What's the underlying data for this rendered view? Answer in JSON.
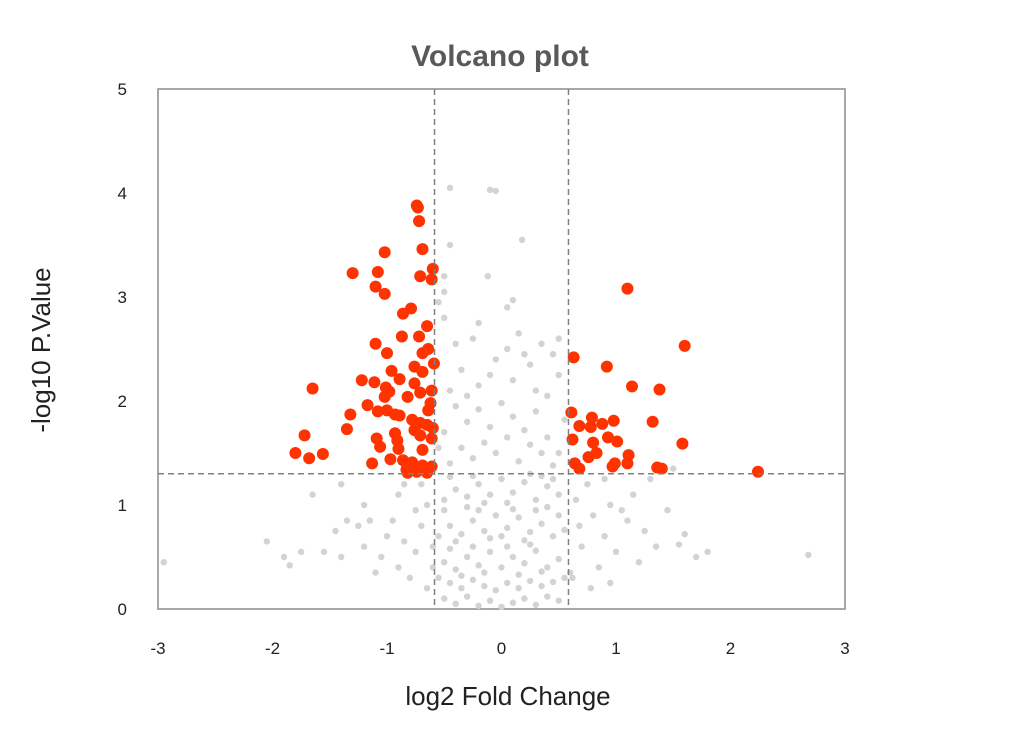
{
  "chart_data": {
    "type": "scatter",
    "title": "Volcano plot",
    "xlabel": "log2 Fold Change",
    "ylabel": "-log10 P.Value",
    "xlim": [
      -3,
      3
    ],
    "ylim": [
      0,
      5
    ],
    "x_ticks": [
      "-3",
      "-2",
      "-1",
      "0",
      "1",
      "2",
      "3"
    ],
    "y_ticks": [
      "0",
      "1",
      "2",
      "3",
      "4",
      "5"
    ],
    "grid": false,
    "thresholds": {
      "fold_change": [
        -0.585,
        0.585
      ],
      "neg_log10_p": 1.3
    },
    "colors": {
      "significant": "#FF3300",
      "not_significant": "#D3D3D3",
      "threshold_line": "#808080",
      "title": "#595959"
    },
    "series": [
      {
        "color": "#D3D3D3",
        "points": [
          [
            -0.5,
            0.1
          ],
          [
            -0.4,
            0.05
          ],
          [
            -0.3,
            0.12
          ],
          [
            -0.2,
            0.03
          ],
          [
            -0.1,
            0.08
          ],
          [
            0,
            0.02
          ],
          [
            0.1,
            0.06
          ],
          [
            0.2,
            0.1
          ],
          [
            0.3,
            0.04
          ],
          [
            0.4,
            0.12
          ],
          [
            0.5,
            0.08
          ],
          [
            -0.45,
            0.25
          ],
          [
            -0.35,
            0.2
          ],
          [
            -0.25,
            0.28
          ],
          [
            -0.15,
            0.22
          ],
          [
            -0.05,
            0.18
          ],
          [
            0.05,
            0.25
          ],
          [
            0.15,
            0.2
          ],
          [
            0.25,
            0.27
          ],
          [
            0.35,
            0.22
          ],
          [
            0.45,
            0.26
          ],
          [
            -0.55,
            0.3
          ],
          [
            0.55,
            0.3
          ],
          [
            -0.6,
            0.4
          ],
          [
            -0.5,
            0.45
          ],
          [
            -0.4,
            0.38
          ],
          [
            -0.3,
            0.5
          ],
          [
            -0.2,
            0.42
          ],
          [
            -0.1,
            0.55
          ],
          [
            0,
            0.4
          ],
          [
            0.1,
            0.5
          ],
          [
            0.2,
            0.44
          ],
          [
            0.3,
            0.56
          ],
          [
            0.4,
            0.4
          ],
          [
            0.5,
            0.48
          ],
          [
            0.6,
            0.35
          ],
          [
            -0.45,
            0.58
          ],
          [
            -0.15,
            0.35
          ],
          [
            0.15,
            0.33
          ],
          [
            0.35,
            0.36
          ],
          [
            -0.35,
            0.32
          ],
          [
            0.05,
            0.6
          ],
          [
            -0.25,
            0.6
          ],
          [
            0.25,
            0.62
          ],
          [
            -0.55,
            0.7
          ],
          [
            -0.45,
            0.8
          ],
          [
            -0.35,
            0.72
          ],
          [
            -0.25,
            0.85
          ],
          [
            -0.15,
            0.75
          ],
          [
            -0.05,
            0.9
          ],
          [
            0.05,
            0.78
          ],
          [
            0.15,
            0.88
          ],
          [
            0.25,
            0.74
          ],
          [
            0.35,
            0.82
          ],
          [
            0.45,
            0.7
          ],
          [
            0.55,
            0.76
          ],
          [
            -0.5,
            0.95
          ],
          [
            -0.3,
            0.98
          ],
          [
            -0.1,
            0.68
          ],
          [
            0.1,
            0.96
          ],
          [
            0.3,
            0.95
          ],
          [
            0.5,
            0.9
          ],
          [
            -0.2,
            0.95
          ],
          [
            0.2,
            0.66
          ],
          [
            0,
            0.7
          ],
          [
            -0.4,
            0.65
          ],
          [
            0.4,
            0.98
          ],
          [
            -0.5,
            1.05
          ],
          [
            -0.4,
            1.15
          ],
          [
            -0.3,
            1.08
          ],
          [
            -0.2,
            1.2
          ],
          [
            -0.1,
            1.1
          ],
          [
            0,
            1.25
          ],
          [
            0.1,
            1.12
          ],
          [
            0.2,
            1.22
          ],
          [
            0.3,
            1.05
          ],
          [
            0.4,
            1.18
          ],
          [
            0.5,
            1.1
          ],
          [
            -0.45,
            1.27
          ],
          [
            -0.25,
            1.28
          ],
          [
            0.05,
            1.02
          ],
          [
            0.25,
            1.3
          ],
          [
            0.45,
            1.25
          ],
          [
            -0.15,
            1.02
          ],
          [
            0.35,
            1.28
          ],
          [
            -0.45,
            1.4
          ],
          [
            -0.35,
            1.55
          ],
          [
            -0.25,
            1.45
          ],
          [
            -0.15,
            1.6
          ],
          [
            -0.05,
            1.5
          ],
          [
            0.05,
            1.65
          ],
          [
            0.15,
            1.42
          ],
          [
            0.25,
            1.58
          ],
          [
            0.35,
            1.5
          ],
          [
            0.45,
            1.38
          ],
          [
            -0.5,
            1.7
          ],
          [
            -0.3,
            1.8
          ],
          [
            -0.1,
            1.75
          ],
          [
            0.1,
            1.85
          ],
          [
            0.2,
            1.72
          ],
          [
            0.3,
            1.9
          ],
          [
            0.4,
            1.65
          ],
          [
            0.5,
            1.5
          ],
          [
            -0.4,
            1.95
          ],
          [
            -0.2,
            1.92
          ],
          [
            0,
            1.98
          ],
          [
            0.55,
            1.82
          ],
          [
            -0.55,
            1.55
          ],
          [
            -0.45,
            2.1
          ],
          [
            -0.35,
            2.3
          ],
          [
            -0.2,
            2.15
          ],
          [
            -0.05,
            2.4
          ],
          [
            0.1,
            2.2
          ],
          [
            0.25,
            2.35
          ],
          [
            0.4,
            2.05
          ],
          [
            -0.4,
            2.55
          ],
          [
            -0.25,
            2.6
          ],
          [
            -0.1,
            2.25
          ],
          [
            0.05,
            2.5
          ],
          [
            0.15,
            2.65
          ],
          [
            0.3,
            2.1
          ],
          [
            0.45,
            2.45
          ],
          [
            -0.5,
            2.8
          ],
          [
            -0.2,
            2.75
          ],
          [
            0.05,
            2.9
          ],
          [
            0.5,
            2.25
          ],
          [
            0.2,
            2.45
          ],
          [
            -0.3,
            2.05
          ],
          [
            0.35,
            2.55
          ],
          [
            0.5,
            2.6
          ],
          [
            -0.5,
            3.05
          ],
          [
            -0.5,
            3.2
          ],
          [
            -0.45,
            3.5
          ],
          [
            -0.12,
            3.2
          ],
          [
            0.1,
            2.97
          ],
          [
            0.18,
            3.55
          ],
          [
            -0.45,
            4.05
          ],
          [
            -0.1,
            4.03
          ],
          [
            -0.05,
            4.02
          ],
          [
            -0.55,
            2.95
          ],
          [
            -2.95,
            0.45
          ],
          [
            -2.05,
            0.65
          ],
          [
            -1.9,
            0.5
          ],
          [
            -1.85,
            0.42
          ],
          [
            -1.75,
            0.55
          ],
          [
            -1.55,
            0.55
          ],
          [
            -1.45,
            0.75
          ],
          [
            -1.4,
            0.5
          ],
          [
            -1.35,
            0.85
          ],
          [
            -1.25,
            0.8
          ],
          [
            -1.2,
            0.6
          ],
          [
            -1.15,
            0.85
          ],
          [
            -1.05,
            0.5
          ],
          [
            -1.0,
            0.7
          ],
          [
            -0.9,
            0.4
          ],
          [
            -0.85,
            0.65
          ],
          [
            -0.8,
            0.3
          ],
          [
            -0.75,
            0.55
          ],
          [
            -0.7,
            0.8
          ],
          [
            -0.65,
            0.2
          ],
          [
            -0.65,
            1.0
          ],
          [
            -0.7,
            1.2
          ],
          [
            -0.9,
            1.1
          ],
          [
            -1.4,
            1.2
          ],
          [
            -1.65,
            1.1
          ],
          [
            -1.2,
            1.0
          ],
          [
            -0.95,
            0.85
          ],
          [
            -1.1,
            0.35
          ],
          [
            -0.6,
            0.6
          ],
          [
            -0.75,
            0.95
          ],
          [
            -0.85,
            1.2
          ],
          [
            2.68,
            0.52
          ],
          [
            1.8,
            0.55
          ],
          [
            1.7,
            0.5
          ],
          [
            1.6,
            0.72
          ],
          [
            1.55,
            0.62
          ],
          [
            1.45,
            0.95
          ],
          [
            1.35,
            0.6
          ],
          [
            1.25,
            0.75
          ],
          [
            1.2,
            0.45
          ],
          [
            1.1,
            0.85
          ],
          [
            1.0,
            0.55
          ],
          [
            0.95,
            1.0
          ],
          [
            0.9,
            0.7
          ],
          [
            0.85,
            0.4
          ],
          [
            0.8,
            0.9
          ],
          [
            0.75,
            1.2
          ],
          [
            0.7,
            0.6
          ],
          [
            0.65,
            1.05
          ],
          [
            0.62,
            0.3
          ],
          [
            0.68,
            0.8
          ],
          [
            1.3,
            1.25
          ],
          [
            1.15,
            1.1
          ],
          [
            0.9,
            1.25
          ],
          [
            1.5,
            1.35
          ],
          [
            0.95,
            0.25
          ],
          [
            1.05,
            0.95
          ],
          [
            0.78,
            0.2
          ]
        ]
      },
      {
        "color": "#FF3300",
        "points": [
          [
            -0.74,
            3.88
          ],
          [
            -0.73,
            3.86
          ],
          [
            -0.72,
            3.73
          ],
          [
            -1.02,
            3.43
          ],
          [
            -0.69,
            3.46
          ],
          [
            -1.3,
            3.23
          ],
          [
            -1.08,
            3.24
          ],
          [
            -0.6,
            3.27
          ],
          [
            -0.71,
            3.2
          ],
          [
            -0.61,
            3.17
          ],
          [
            -1.1,
            3.1
          ],
          [
            -1.02,
            3.03
          ],
          [
            -0.79,
            2.89
          ],
          [
            -0.86,
            2.84
          ],
          [
            -0.65,
            2.72
          ],
          [
            -0.87,
            2.62
          ],
          [
            -0.72,
            2.62
          ],
          [
            -1.1,
            2.55
          ],
          [
            -0.64,
            2.5
          ],
          [
            -0.69,
            2.46
          ],
          [
            -1.0,
            2.46
          ],
          [
            -0.59,
            2.36
          ],
          [
            -0.76,
            2.33
          ],
          [
            -0.96,
            2.29
          ],
          [
            -0.69,
            2.28
          ],
          [
            -0.89,
            2.21
          ],
          [
            -1.22,
            2.2
          ],
          [
            -1.11,
            2.18
          ],
          [
            -0.76,
            2.17
          ],
          [
            -1.65,
            2.12
          ],
          [
            -1.01,
            2.13
          ],
          [
            -0.98,
            2.09
          ],
          [
            -0.61,
            2.1
          ],
          [
            -0.71,
            2.08
          ],
          [
            -0.82,
            2.04
          ],
          [
            -1.02,
            2.04
          ],
          [
            -0.62,
            1.98
          ],
          [
            -0.64,
            1.91
          ],
          [
            -1.17,
            1.96
          ],
          [
            -1.08,
            1.9
          ],
          [
            -1.0,
            1.91
          ],
          [
            -1.32,
            1.87
          ],
          [
            -0.93,
            1.87
          ],
          [
            -0.89,
            1.86
          ],
          [
            -0.78,
            1.82
          ],
          [
            -0.71,
            1.79
          ],
          [
            -0.65,
            1.77
          ],
          [
            -0.6,
            1.74
          ],
          [
            -1.35,
            1.73
          ],
          [
            -0.76,
            1.72
          ],
          [
            -0.93,
            1.69
          ],
          [
            -1.72,
            1.67
          ],
          [
            -0.71,
            1.67
          ],
          [
            -0.61,
            1.64
          ],
          [
            -1.09,
            1.64
          ],
          [
            -0.91,
            1.62
          ],
          [
            -1.06,
            1.56
          ],
          [
            -0.9,
            1.54
          ],
          [
            -0.69,
            1.53
          ],
          [
            -1.8,
            1.5
          ],
          [
            -1.56,
            1.49
          ],
          [
            -1.68,
            1.45
          ],
          [
            -0.97,
            1.44
          ],
          [
            -1.13,
            1.4
          ],
          [
            -0.86,
            1.43
          ],
          [
            -0.78,
            1.41
          ],
          [
            -0.69,
            1.38
          ],
          [
            -0.61,
            1.37
          ],
          [
            -0.83,
            1.34
          ],
          [
            -0.74,
            1.32
          ],
          [
            -0.65,
            1.31
          ],
          [
            -0.82,
            1.31
          ],
          [
            -0.71,
            1.35
          ],
          [
            1.1,
            3.08
          ],
          [
            1.6,
            2.53
          ],
          [
            0.63,
            2.42
          ],
          [
            0.92,
            2.33
          ],
          [
            1.14,
            2.14
          ],
          [
            1.38,
            2.11
          ],
          [
            0.61,
            1.89
          ],
          [
            0.79,
            1.84
          ],
          [
            0.68,
            1.76
          ],
          [
            0.78,
            1.75
          ],
          [
            0.88,
            1.78
          ],
          [
            0.98,
            1.81
          ],
          [
            1.32,
            1.8
          ],
          [
            0.62,
            1.63
          ],
          [
            0.8,
            1.6
          ],
          [
            0.93,
            1.65
          ],
          [
            1.01,
            1.61
          ],
          [
            1.58,
            1.59
          ],
          [
            0.76,
            1.46
          ],
          [
            0.83,
            1.5
          ],
          [
            1.11,
            1.48
          ],
          [
            0.64,
            1.4
          ],
          [
            0.68,
            1.35
          ],
          [
            0.97,
            1.37
          ],
          [
            0.99,
            1.4
          ],
          [
            1.1,
            1.4
          ],
          [
            1.36,
            1.36
          ],
          [
            1.4,
            1.35
          ],
          [
            2.24,
            1.32
          ]
        ]
      }
    ]
  }
}
